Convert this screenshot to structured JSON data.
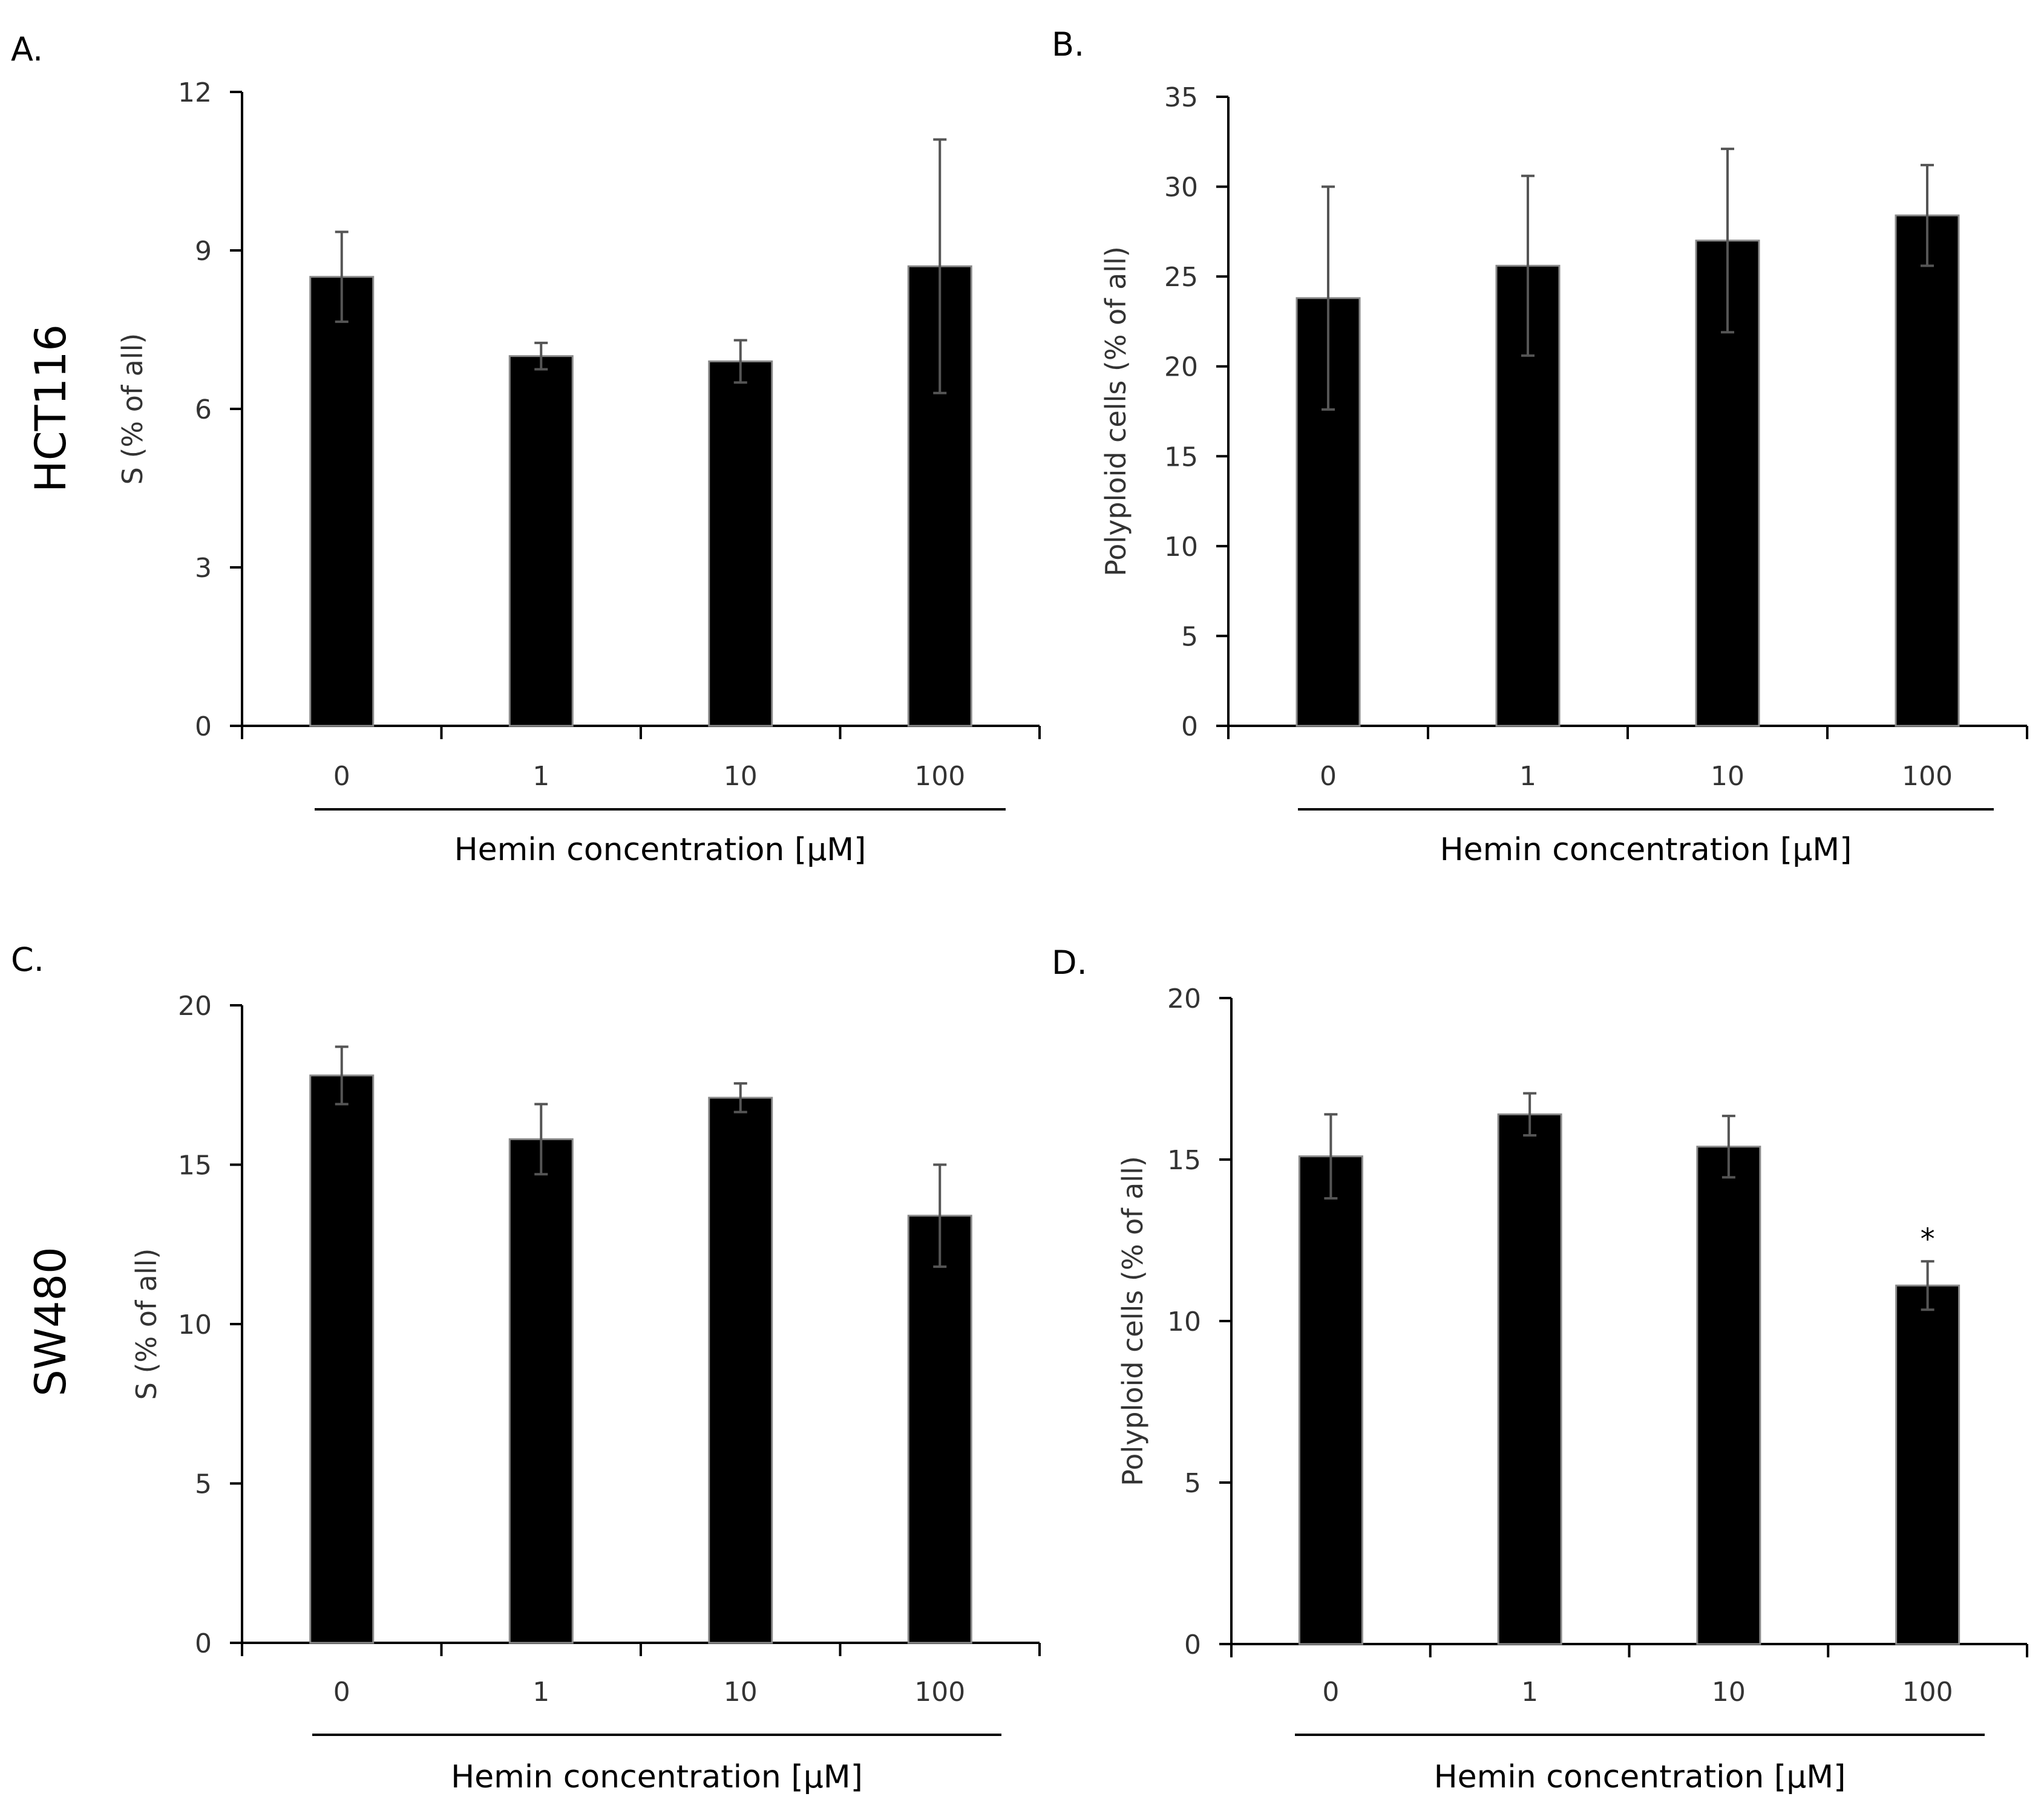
{
  "figure": {
    "row_labels": [
      "HCT116",
      "SW480"
    ]
  },
  "chart_data": [
    {
      "panel": "A.",
      "type": "bar",
      "cell_line": "HCT116",
      "title": "",
      "xlabel": "Hemin concentration [µM]",
      "ylabel": "S (% of all)",
      "categories": [
        "0",
        "1",
        "10",
        "100"
      ],
      "values": [
        8.5,
        7.0,
        6.9,
        8.7
      ],
      "errors": [
        0.85,
        0.25,
        0.4,
        2.4
      ],
      "ylim": [
        0,
        12
      ],
      "yticks": [
        0,
        3,
        6,
        9,
        12
      ],
      "ytick_labels": [
        "0",
        "3",
        "6",
        "9",
        "12"
      ],
      "annotations": [
        "",
        "",
        "",
        ""
      ]
    },
    {
      "panel": "B.",
      "type": "bar",
      "cell_line": "HCT116",
      "title": "",
      "xlabel": "Hemin concentration [µM]",
      "ylabel": "Polyploid cells (% of all)",
      "categories": [
        "0",
        "1",
        "10",
        "100"
      ],
      "values": [
        23.8,
        25.6,
        27.0,
        28.4
      ],
      "errors": [
        6.2,
        5.0,
        5.1,
        2.8
      ],
      "ylim": [
        0,
        35
      ],
      "yticks": [
        0,
        5,
        10,
        15,
        20,
        25,
        30,
        35
      ],
      "ytick_labels": [
        "0",
        "5",
        "10",
        "15",
        "20",
        "25",
        "30",
        "35"
      ],
      "annotations": [
        "",
        "",
        "",
        ""
      ]
    },
    {
      "panel": "C.",
      "type": "bar",
      "cell_line": "SW480",
      "title": "",
      "xlabel": "Hemin concentration [µM]",
      "ylabel": "S (% of all)",
      "categories": [
        "0",
        "1",
        "10",
        "100"
      ],
      "values": [
        17.8,
        15.8,
        17.1,
        13.4
      ],
      "errors": [
        0.9,
        1.1,
        0.45,
        1.6
      ],
      "ylim": [
        0,
        20
      ],
      "yticks": [
        0,
        5,
        10,
        15,
        20
      ],
      "ytick_labels": [
        "0",
        "5",
        "10",
        "15",
        "20"
      ],
      "annotations": [
        "",
        "",
        "",
        ""
      ]
    },
    {
      "panel": "D.",
      "type": "bar",
      "cell_line": "SW480",
      "title": "",
      "xlabel": "Hemin concentration [µM]",
      "ylabel": "Polyploid cells (% of all)",
      "categories": [
        "0",
        "1",
        "10",
        "100"
      ],
      "values": [
        15.1,
        16.4,
        15.4,
        11.1
      ],
      "errors": [
        1.3,
        0.65,
        0.95,
        0.75
      ],
      "ylim": [
        0,
        20
      ],
      "yticks": [
        0,
        5,
        10,
        15,
        20
      ],
      "ytick_labels": [
        "0",
        "5",
        "10",
        "15",
        "20"
      ],
      "annotations": [
        "",
        "",
        "",
        "*"
      ]
    }
  ]
}
